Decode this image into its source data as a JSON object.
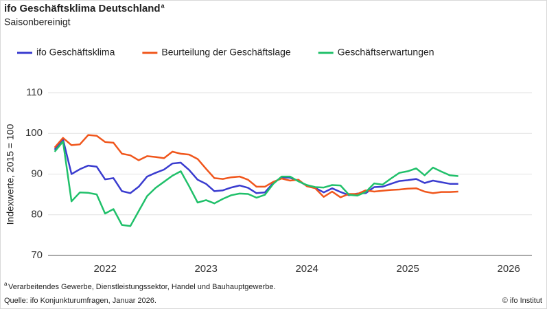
{
  "chart_data": {
    "type": "line",
    "title": "ifo Geschäftsklima Deutschland",
    "title_marker": "a",
    "subtitle": "Saisonbereinigt",
    "y_label": "Indexwerte, 2015 = 100",
    "footnote_marker": "a",
    "footnote": "Verarbeitendes Gewerbe, Dienstleistungssektor, Handel und Bauhauptgewerbe.",
    "source": "Quelle: ifo Konjunkturumfragen, Januar 2026.",
    "copyright": "© ifo Institut",
    "x": [
      2022,
      2022.083,
      2022.167,
      2022.25,
      2022.333,
      2022.417,
      2022.5,
      2022.583,
      2022.667,
      2022.75,
      2022.833,
      2022.917,
      2023,
      2023.083,
      2023.167,
      2023.25,
      2023.333,
      2023.417,
      2023.5,
      2023.583,
      2023.667,
      2023.75,
      2023.833,
      2023.917,
      2024,
      2024.083,
      2024.167,
      2024.25,
      2024.333,
      2024.417,
      2024.5,
      2024.583,
      2024.667,
      2024.75,
      2024.833,
      2024.917,
      2025,
      2025.083,
      2025.167,
      2025.25,
      2025.333,
      2025.417,
      2025.5,
      2025.583,
      2025.667,
      2025.75,
      2025.833,
      2025.917,
      2026
    ],
    "xlim": [
      2021.88,
      2026.73
    ],
    "xticks": [
      {
        "value": 2022.5,
        "label": "2022"
      },
      {
        "value": 2023.5,
        "label": "2023"
      },
      {
        "value": 2024.5,
        "label": "2024"
      },
      {
        "value": 2025.5,
        "label": "2025"
      },
      {
        "value": 2026.5,
        "label": "2026"
      }
    ],
    "ylim": [
      70,
      110
    ],
    "yticks": [
      70,
      80,
      90,
      100,
      110
    ],
    "grid": true,
    "series": [
      {
        "name": "ifo Geschäftsklima",
        "color": "#3a3ccf",
        "values": [
          96.0,
          98.5,
          90.0,
          91.2,
          92.1,
          91.8,
          88.7,
          89.0,
          85.8,
          85.3,
          86.9,
          89.4,
          90.3,
          91.1,
          92.6,
          92.8,
          91.0,
          88.6,
          87.6,
          85.8,
          86.0,
          86.7,
          87.2,
          86.6,
          85.3,
          85.5,
          87.8,
          89.2,
          89.1,
          88.3,
          87.1,
          86.6,
          85.5,
          86.5,
          85.6,
          84.8,
          85.2,
          85.3,
          86.8,
          86.9,
          87.6,
          88.3,
          88.5,
          88.8,
          87.8,
          88.4,
          88.0,
          87.6,
          87.6
        ]
      },
      {
        "name": "Beurteilung der Geschäftslage",
        "color": "#f0561c",
        "values": [
          96.5,
          98.9,
          97.1,
          97.3,
          99.6,
          99.4,
          97.9,
          97.7,
          95.0,
          94.6,
          93.4,
          94.4,
          94.2,
          93.9,
          95.5,
          95.0,
          94.8,
          93.7,
          91.3,
          89.0,
          88.8,
          89.2,
          89.4,
          88.6,
          86.9,
          86.9,
          88.1,
          88.9,
          88.4,
          88.6,
          87.0,
          86.5,
          84.4,
          85.7,
          84.3,
          85.1,
          85.1,
          86.0,
          85.7,
          85.9,
          86.1,
          86.2,
          86.4,
          86.5,
          85.7,
          85.3,
          85.6,
          85.6,
          85.7
        ]
      },
      {
        "name": "Geschäftserwartungen",
        "color": "#20c06a",
        "values": [
          95.5,
          98.0,
          83.3,
          85.5,
          85.4,
          85.0,
          80.3,
          81.4,
          77.5,
          77.2,
          80.9,
          84.6,
          86.6,
          88.1,
          89.6,
          90.7,
          87.0,
          83.0,
          83.6,
          82.8,
          83.9,
          84.8,
          85.2,
          85.1,
          84.2,
          84.9,
          87.6,
          89.4,
          89.4,
          88.2,
          87.3,
          86.8,
          86.7,
          87.3,
          87.2,
          84.9,
          84.7,
          85.6,
          87.7,
          87.4,
          88.9,
          90.3,
          90.7,
          91.4,
          89.7,
          91.6,
          90.6,
          89.7,
          89.5
        ]
      }
    ]
  }
}
